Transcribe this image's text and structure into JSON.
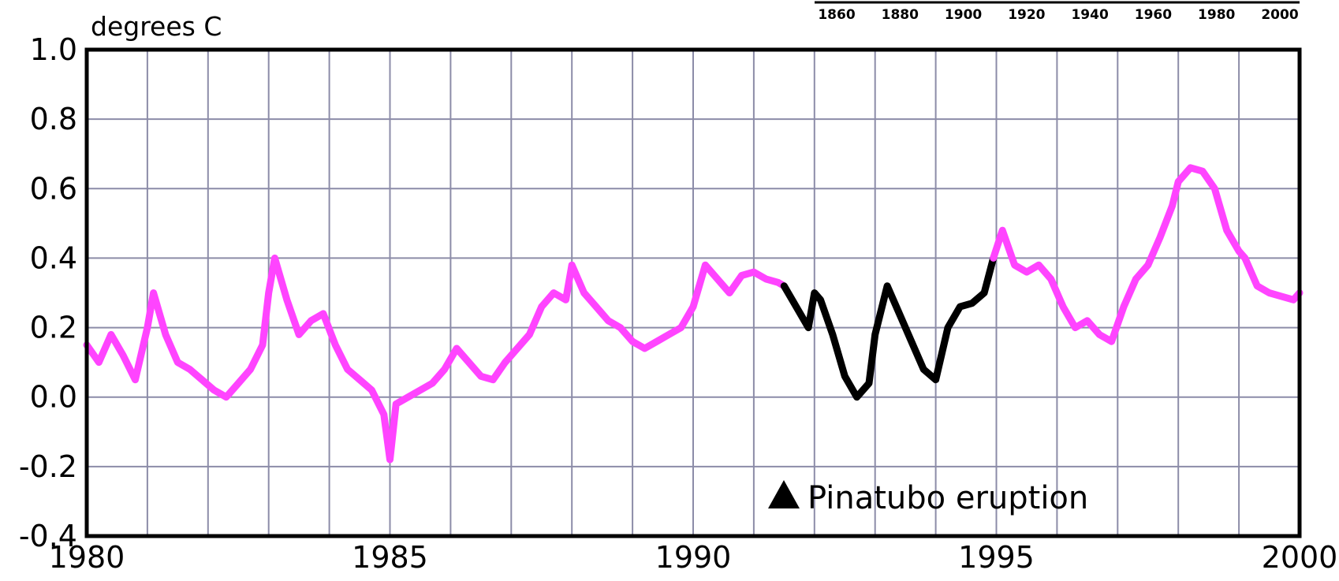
{
  "chart_data": {
    "type": "line",
    "title": "",
    "ylabel": "degrees C",
    "xlabel": "",
    "xlim": [
      1980,
      2000
    ],
    "ylim": [
      -0.4,
      1.0
    ],
    "x_ticks": [
      {
        "value": 1980,
        "label": "1980"
      },
      {
        "value": 1985,
        "label": "1985"
      },
      {
        "value": 1990,
        "label": "1990"
      },
      {
        "value": 1995,
        "label": "1995"
      },
      {
        "value": 2000,
        "label": "2000"
      }
    ],
    "y_ticks": [
      {
        "value": 1.0,
        "label": "1.0"
      },
      {
        "value": 0.8,
        "label": "0.8"
      },
      {
        "value": 0.6,
        "label": "0.6"
      },
      {
        "value": 0.4,
        "label": "0.4"
      },
      {
        "value": 0.2,
        "label": "0.2"
      },
      {
        "value": 0.0,
        "label": "0.0"
      },
      {
        "value": -0.2,
        "label": "-0.2"
      },
      {
        "value": -0.4,
        "label": "-0.4"
      }
    ],
    "grid": true,
    "grid_x_step": 1,
    "grid_y_step": 0.2,
    "annotation": {
      "marker": "triangle",
      "text": "Pinatubo eruption"
    },
    "inset_axis_labels": [
      "1860",
      "1880",
      "1900",
      "1920",
      "1940",
      "1960",
      "1980",
      "2000"
    ],
    "series": [
      {
        "color": "#ff44ff",
        "x": [
          1980.0,
          1980.2,
          1980.4,
          1980.6,
          1980.8,
          1981.0,
          1981.1,
          1981.3,
          1981.5,
          1981.7,
          1981.9,
          1982.1,
          1982.3,
          1982.5,
          1982.7,
          1982.9,
          1983.0,
          1983.1,
          1983.3,
          1983.5,
          1983.7,
          1983.9,
          1984.1,
          1984.3,
          1984.5,
          1984.7,
          1984.9,
          1985.0,
          1985.1,
          1985.3,
          1985.5,
          1985.7,
          1985.9,
          1986.1,
          1986.3,
          1986.5,
          1986.7,
          1986.9,
          1987.1,
          1987.3,
          1987.5,
          1987.7,
          1987.9,
          1988.0,
          1988.2,
          1988.4,
          1988.6,
          1988.8,
          1989.0,
          1989.2,
          1989.4,
          1989.6,
          1989.8,
          1990.0,
          1990.2,
          1990.4,
          1990.6,
          1990.8,
          1991.0,
          1991.2,
          1991.4,
          1991.5
        ],
        "y": [
          0.15,
          0.1,
          0.18,
          0.12,
          0.05,
          0.2,
          0.3,
          0.18,
          0.1,
          0.08,
          0.05,
          0.02,
          0.0,
          0.04,
          0.08,
          0.15,
          0.3,
          0.4,
          0.28,
          0.18,
          0.22,
          0.24,
          0.15,
          0.08,
          0.05,
          0.02,
          -0.05,
          -0.18,
          -0.02,
          0.0,
          0.02,
          0.04,
          0.08,
          0.14,
          0.1,
          0.06,
          0.05,
          0.1,
          0.14,
          0.18,
          0.26,
          0.3,
          0.28,
          0.38,
          0.3,
          0.26,
          0.22,
          0.2,
          0.16,
          0.14,
          0.16,
          0.18,
          0.2,
          0.26,
          0.38,
          0.34,
          0.3,
          0.35,
          0.36,
          0.34,
          0.33,
          0.32
        ]
      },
      {
        "name": "",
        "color": "#000000",
        "x": [
          1991.5,
          1991.7,
          1991.9,
          1992.0,
          1992.1,
          1992.3,
          1992.5,
          1992.7,
          1992.9,
          1993.0,
          1993.2,
          1993.4,
          1993.6,
          1993.8,
          1994.0,
          1994.2,
          1994.4,
          1994.6,
          1994.8,
          1994.95
        ],
        "y": [
          0.32,
          0.26,
          0.2,
          0.3,
          0.28,
          0.18,
          0.06,
          0.0,
          0.04,
          0.18,
          0.32,
          0.24,
          0.16,
          0.08,
          0.05,
          0.2,
          0.26,
          0.27,
          0.3,
          0.4
        ]
      },
      {
        "name": "",
        "color": "#ff44ff",
        "x": [
          1994.95,
          1995.1,
          1995.3,
          1995.5,
          1995.7,
          1995.9,
          1996.1,
          1996.3,
          1996.5,
          1996.7,
          1996.9,
          1997.1,
          1997.3,
          1997.5,
          1997.7,
          1997.9,
          1998.0,
          1998.2,
          1998.4,
          1998.6,
          1998.8,
          1999.0,
          1999.1,
          1999.3,
          1999.5,
          1999.7,
          1999.9,
          2000.0
        ],
        "y": [
          0.4,
          0.48,
          0.38,
          0.36,
          0.38,
          0.34,
          0.26,
          0.2,
          0.22,
          0.18,
          0.16,
          0.26,
          0.34,
          0.38,
          0.46,
          0.55,
          0.62,
          0.66,
          0.65,
          0.6,
          0.48,
          0.42,
          0.4,
          0.32,
          0.3,
          0.29,
          0.28,
          0.3
        ]
      }
    ]
  }
}
